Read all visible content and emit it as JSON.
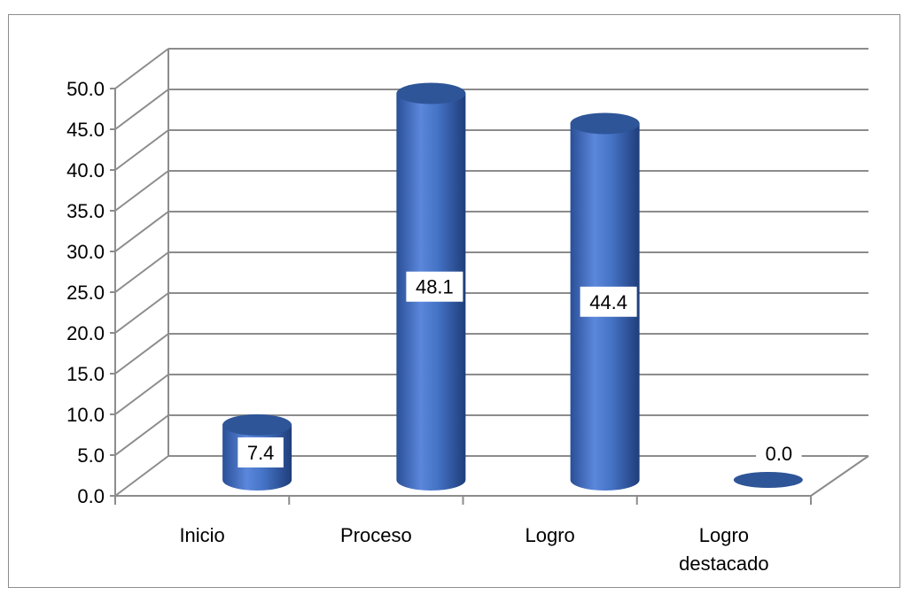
{
  "chart_data": {
    "type": "bar",
    "style": "3d-cylinder",
    "categories": [
      "Inicio",
      "Proceso",
      "Logro",
      "Logro destacado"
    ],
    "values": [
      7.4,
      48.1,
      44.4,
      0.0
    ],
    "data_labels": [
      "7.4",
      "48.1",
      "44.4",
      "0.0"
    ],
    "y_ticks": [
      "0.0",
      "5.0",
      "10.0",
      "15.0",
      "20.0",
      "25.0",
      "30.0",
      "35.0",
      "40.0",
      "45.0",
      "50.0"
    ],
    "ylim": [
      0,
      50
    ],
    "grid": true,
    "legend": "none",
    "colors": {
      "bar": "#4472c4",
      "bar_dark": "#1f3d7a",
      "bar_light": "#6f97e0",
      "bar_top": "#2e5597",
      "grid": "#8c8c8c"
    }
  }
}
